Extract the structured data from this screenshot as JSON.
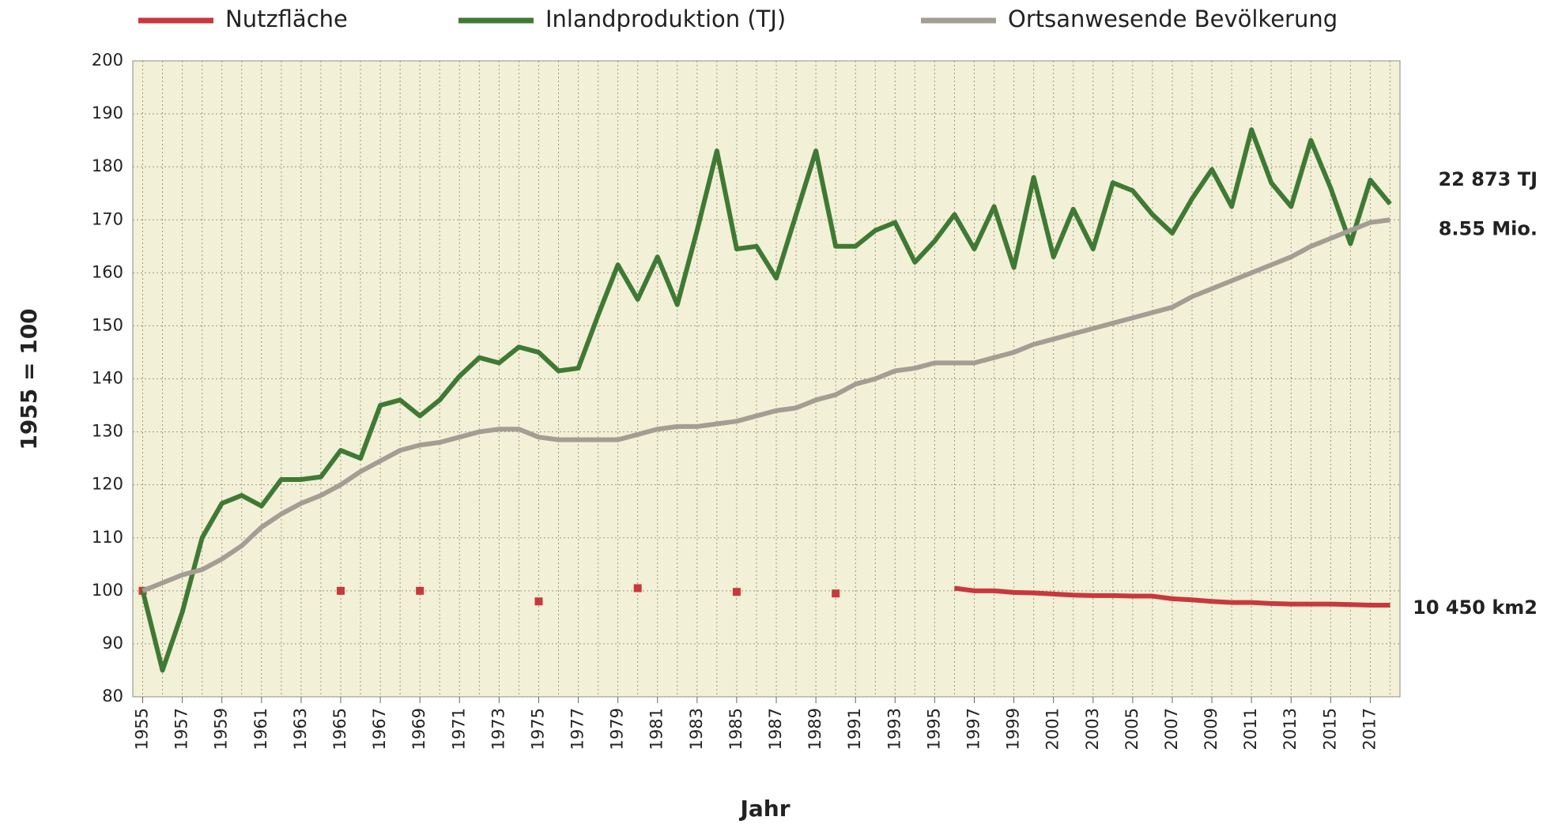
{
  "chart_data": {
    "type": "line",
    "y_label": "1955 = 100",
    "x_label": "Jahr",
    "x": [
      1955,
      1956,
      1957,
      1958,
      1959,
      1960,
      1961,
      1962,
      1963,
      1964,
      1965,
      1966,
      1967,
      1968,
      1969,
      1970,
      1971,
      1972,
      1973,
      1974,
      1975,
      1976,
      1977,
      1978,
      1979,
      1980,
      1981,
      1982,
      1983,
      1984,
      1985,
      1986,
      1987,
      1988,
      1989,
      1990,
      1991,
      1992,
      1993,
      1994,
      1995,
      1996,
      1997,
      1998,
      1999,
      2000,
      2001,
      2002,
      2003,
      2004,
      2005,
      2006,
      2007,
      2008,
      2009,
      2010,
      2011,
      2012,
      2013,
      2014,
      2015,
      2016,
      2017,
      2018
    ],
    "series": [
      {
        "name": "Nutzfläche",
        "color": "#c8383c",
        "end_label": "10 450 km2",
        "values": [
          100,
          null,
          null,
          null,
          null,
          null,
          null,
          null,
          null,
          null,
          100,
          null,
          null,
          null,
          100,
          null,
          null,
          null,
          null,
          null,
          98,
          null,
          null,
          null,
          null,
          100.5,
          null,
          null,
          null,
          null,
          99.8,
          null,
          null,
          null,
          null,
          99.5,
          null,
          null,
          null,
          null,
          null,
          100.5,
          100,
          100,
          99.7,
          99.6,
          99.4,
          99.2,
          99.1,
          99.1,
          99,
          99,
          98.5,
          98.3,
          98,
          97.8,
          97.8,
          97.6,
          97.5,
          97.5,
          97.5,
          97.4,
          97.3,
          97.3
        ]
      },
      {
        "name": "Inlandproduktion (TJ)",
        "color": "#3f7a34",
        "end_label": "22 873 TJ",
        "values": [
          100,
          85,
          96,
          110,
          116.5,
          118,
          116,
          121,
          121,
          121.5,
          126.5,
          125,
          135,
          136,
          133,
          136,
          140.5,
          144,
          143,
          146,
          145,
          141.5,
          142,
          152,
          161.5,
          155,
          163,
          154,
          168,
          183,
          164.5,
          165,
          159,
          171,
          183,
          165,
          165,
          168,
          169.5,
          162,
          166,
          171,
          164.5,
          172.5,
          161,
          178,
          163,
          172,
          164.5,
          177,
          175.5,
          171,
          167.5,
          174,
          179.5,
          172.5,
          187,
          177,
          172.5,
          185,
          176,
          165.5,
          177.5,
          173
        ]
      },
      {
        "name": "Ortsanwesende Bevölkerung",
        "color": "#a39d93",
        "end_label": "8.55 Mio.",
        "values": [
          100,
          101.5,
          103,
          104,
          106,
          108.5,
          112,
          114.5,
          116.5,
          118,
          120,
          122.5,
          124.5,
          126.5,
          127.5,
          128,
          129,
          130,
          130.5,
          130.5,
          129,
          128.5,
          128.5,
          128.5,
          128.5,
          129.5,
          130.5,
          131,
          131,
          131.5,
          132,
          133,
          134,
          134.5,
          136,
          137,
          139,
          140,
          141.5,
          142,
          143,
          143,
          143,
          144,
          145,
          146.5,
          147.5,
          148.5,
          149.5,
          150.5,
          151.5,
          152.5,
          153.5,
          155.5,
          157,
          158.5,
          160,
          161.5,
          163,
          165,
          166.5,
          168,
          169.5,
          170
        ]
      }
    ],
    "xlim": [
      1954.5,
      2018.5
    ],
    "xticks": [
      1955,
      1957,
      1959,
      1961,
      1963,
      1965,
      1967,
      1969,
      1971,
      1973,
      1975,
      1977,
      1979,
      1981,
      1983,
      1985,
      1987,
      1989,
      1991,
      1993,
      1995,
      1997,
      1999,
      2001,
      2003,
      2005,
      2007,
      2009,
      2011,
      2013,
      2015,
      2017
    ],
    "ylim": [
      80,
      200
    ],
    "yticks": [
      80,
      90,
      100,
      110,
      120,
      130,
      140,
      150,
      160,
      170,
      180,
      190,
      200
    ],
    "grid": true,
    "legend": "top"
  }
}
